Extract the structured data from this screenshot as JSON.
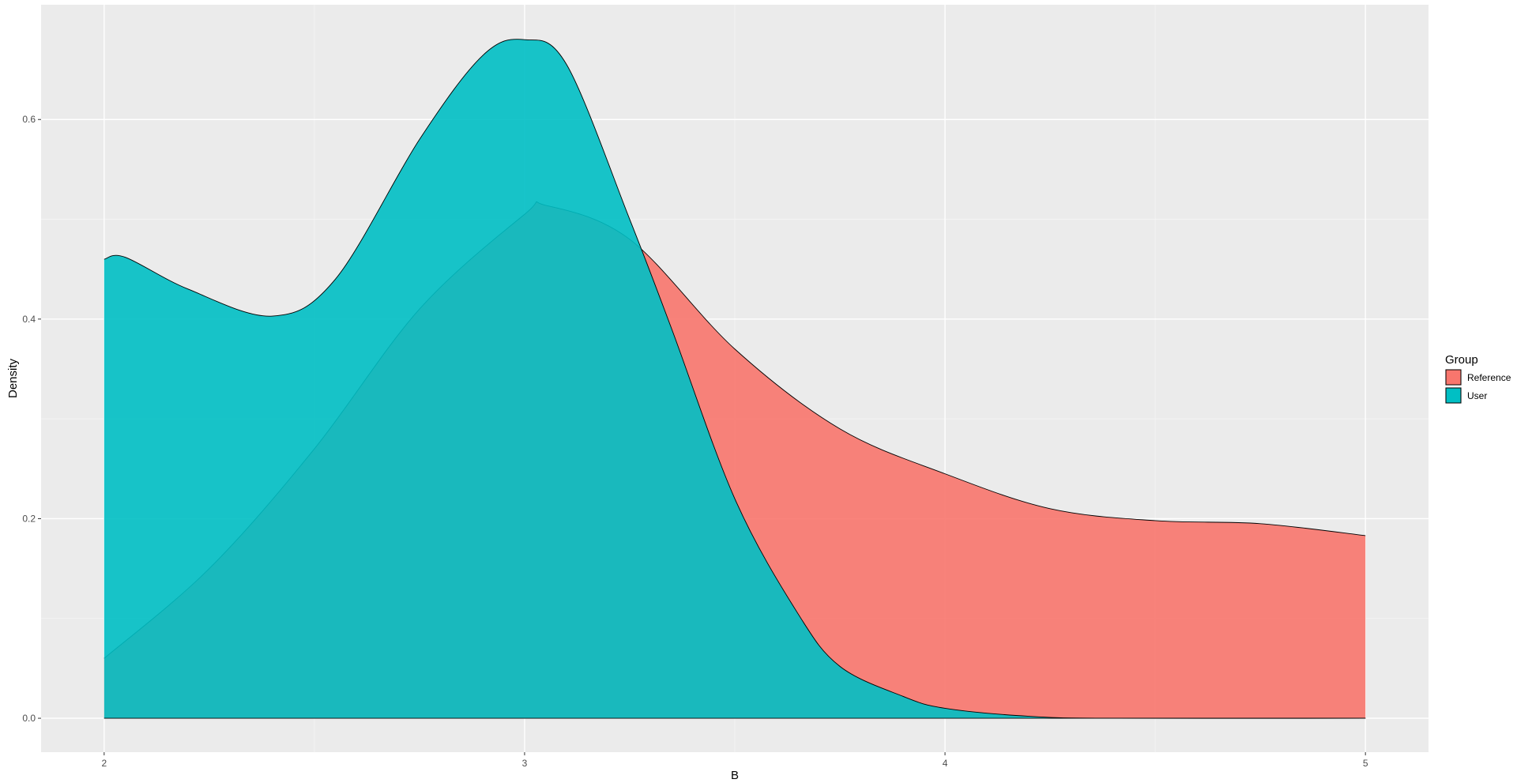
{
  "chart_data": {
    "type": "area",
    "title": "",
    "xlabel": "B",
    "ylabel": "Density",
    "xlim": [
      1.85,
      5.15
    ],
    "ylim": [
      -0.034,
      0.715
    ],
    "x_ticks": [
      2,
      3,
      4,
      5
    ],
    "x_tick_labels": [
      "2",
      "3",
      "4",
      "5"
    ],
    "x_minor_gridlines": [
      2.5,
      3.5,
      4.5
    ],
    "y_ticks": [
      0.0,
      0.2,
      0.4,
      0.6
    ],
    "y_tick_labels": [
      "0.0",
      "0.2",
      "0.4",
      "0.6"
    ],
    "y_minor_gridlines": [
      0.1,
      0.3,
      0.5
    ],
    "grid": true,
    "panel_background": "#ebebeb",
    "legend": {
      "title": "Group",
      "position": "right",
      "entries": [
        "Reference",
        "User"
      ]
    },
    "series": [
      {
        "name": "Reference",
        "color": "#f8766d",
        "x": [
          2.0,
          2.25,
          2.5,
          2.75,
          3.0,
          3.05,
          3.25,
          3.5,
          3.75,
          4.0,
          4.25,
          4.5,
          4.75,
          5.0
        ],
        "values": [
          0.06,
          0.15,
          0.27,
          0.41,
          0.505,
          0.514,
          0.48,
          0.37,
          0.29,
          0.245,
          0.21,
          0.198,
          0.195,
          0.183
        ]
      },
      {
        "name": "User",
        "color": "#00bfc4",
        "x": [
          2.0,
          2.05,
          2.2,
          2.4,
          2.55,
          2.75,
          2.9,
          3.0,
          3.1,
          3.25,
          3.35,
          3.5,
          3.65,
          3.75,
          3.9,
          4.0,
          4.2,
          4.4,
          5.0
        ],
        "values": [
          0.46,
          0.462,
          0.43,
          0.403,
          0.44,
          0.58,
          0.664,
          0.68,
          0.655,
          0.5,
          0.39,
          0.22,
          0.105,
          0.052,
          0.022,
          0.01,
          0.002,
          0.0,
          0.0
        ]
      }
    ]
  }
}
